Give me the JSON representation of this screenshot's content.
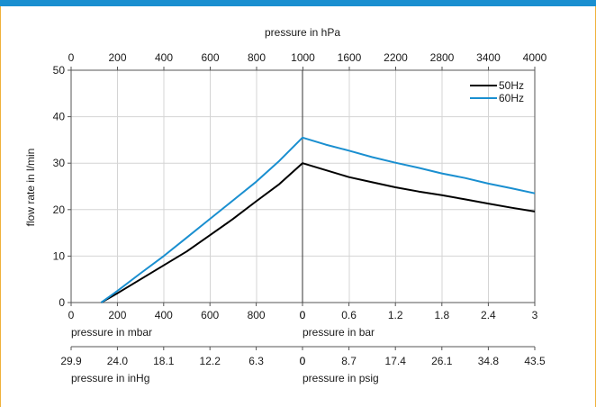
{
  "chart_data": {
    "type": "line",
    "colors": {
      "50Hz": "#000000",
      "60Hz": "#1a8fd0",
      "grid": "#d4d4d4",
      "frame_top": "#1a8fd0",
      "frame_side": "#f0b23c"
    },
    "ylabel": "flow rate in l/min",
    "ylim": [
      0,
      50
    ],
    "y_ticks": [
      "0",
      "10",
      "20",
      "30",
      "40",
      "50"
    ],
    "grid": true,
    "legend_position": "top-right",
    "axes": {
      "top_hpa": {
        "label": "pressure in hPa",
        "ticks": [
          "0",
          "200",
          "400",
          "600",
          "800",
          "1000",
          "1600",
          "2200",
          "2800",
          "3400",
          "4000"
        ]
      },
      "bottom_mbar": {
        "label": "pressure in mbar",
        "ticks": [
          "0",
          "200",
          "400",
          "600",
          "800",
          "0"
        ]
      },
      "bottom_bar": {
        "label": "pressure in bar",
        "ticks": [
          "0",
          "0.6",
          "1.2",
          "1.8",
          "2.4",
          "3"
        ]
      },
      "inhg": {
        "label": "pressure in inHg",
        "ticks": [
          "29.9",
          "24.0",
          "18.1",
          "12.2",
          "6.3",
          "0"
        ]
      },
      "psig": {
        "label": "pressure in psig",
        "ticks": [
          "0",
          "8.7",
          "17.4",
          "26.1",
          "34.8",
          "43.5"
        ]
      }
    },
    "series": [
      {
        "name": "50Hz",
        "vacuum_mbar": {
          "x": [
            130,
            200,
            300,
            400,
            500,
            600,
            700,
            800,
            900,
            1000
          ],
          "y": [
            0,
            2,
            5,
            8,
            11,
            14.5,
            18,
            21.8,
            25.5,
            30
          ]
        },
        "pressure_bar": {
          "x": [
            0,
            0.3,
            0.6,
            0.9,
            1.2,
            1.5,
            1.8,
            2.1,
            2.4,
            2.7,
            3.0
          ],
          "y": [
            30,
            28.5,
            27,
            25.9,
            24.8,
            23.9,
            23.1,
            22.2,
            21.3,
            20.4,
            19.6
          ]
        }
      },
      {
        "name": "60Hz",
        "vacuum_mbar": {
          "x": [
            130,
            200,
            300,
            400,
            500,
            600,
            700,
            800,
            900,
            1000
          ],
          "y": [
            0,
            2.5,
            6.3,
            10,
            14,
            18,
            22,
            26,
            30.5,
            35.5
          ]
        },
        "pressure_bar": {
          "x": [
            0,
            0.3,
            0.6,
            0.9,
            1.2,
            1.5,
            1.8,
            2.1,
            2.4,
            2.7,
            3.0
          ],
          "y": [
            35.5,
            34,
            32.7,
            31.3,
            30.1,
            29,
            27.8,
            26.8,
            25.6,
            24.6,
            23.5
          ]
        }
      }
    ]
  }
}
